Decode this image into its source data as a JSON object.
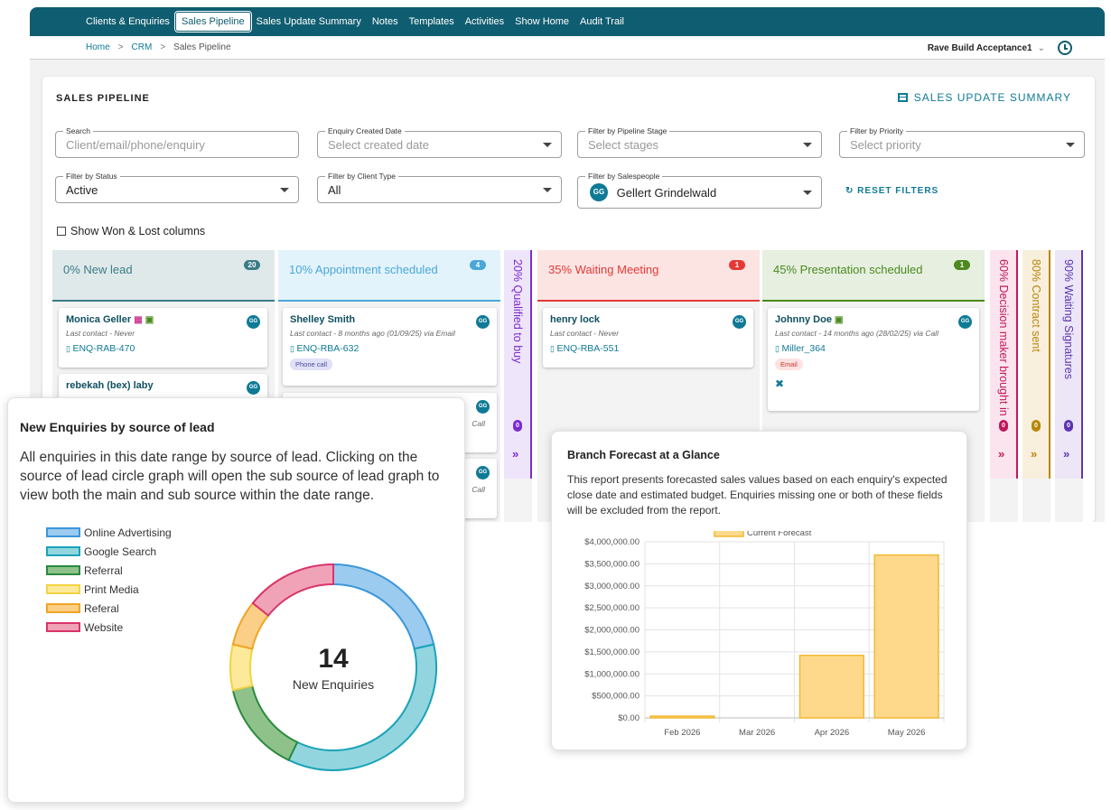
{
  "nav": {
    "items": [
      "Clients & Enquiries",
      "Sales Pipeline",
      "Sales Update Summary",
      "Notes",
      "Templates",
      "Activities",
      "Show Home",
      "Audit Trail"
    ],
    "active_index": 1
  },
  "breadcrumb": [
    "Home",
    "CRM",
    "Sales Pipeline"
  ],
  "account": {
    "name": "Rave Build Acceptance1"
  },
  "page": {
    "title": "SALES PIPELINE",
    "summary_link": "SALES UPDATE SUMMARY",
    "reset_label": "RESET FILTERS",
    "show_won_lost": "Show Won & Lost columns"
  },
  "filters": {
    "search": {
      "label": "Search",
      "placeholder": "Client/email/phone/enquiry"
    },
    "created": {
      "label": "Enquiry Created Date",
      "placeholder": "Select created date"
    },
    "stage": {
      "label": "Filter by Pipeline Stage",
      "placeholder": "Select stages"
    },
    "priority": {
      "label": "Filter by Priority",
      "placeholder": "Select priority"
    },
    "status": {
      "label": "Filter by Status",
      "value": "Active"
    },
    "client_type": {
      "label": "Filter by Client Type",
      "value": "All"
    },
    "salespeople": {
      "label": "Filter by Salespeople",
      "initials": "GG",
      "value": "Gellert Grindelwald"
    }
  },
  "columns": {
    "new_lead": {
      "title": "0% New lead",
      "count": "20",
      "color": "#3b7d86"
    },
    "appointment": {
      "title": "10% Appointment scheduled",
      "count": "4",
      "color": "#4aa7d8"
    },
    "qualified": {
      "title": "20% Qualified to buy",
      "count": "0",
      "color": "#7b2bd1"
    },
    "waiting_meeting": {
      "title": "35% Waiting Meeting",
      "count": "1",
      "color": "#e53935"
    },
    "presentation": {
      "title": "45% Presentation scheduled",
      "count": "1",
      "color": "#4c8a1f"
    },
    "decision_maker": {
      "title": "60% Decision maker brought in",
      "count": "0",
      "color": "#c2185b"
    },
    "contract_sent": {
      "title": "80% Contract sent",
      "count": "0",
      "color": "#b8860b"
    },
    "waiting_signatures": {
      "title": "90% Waiting Signatures",
      "count": "0",
      "color": "#5e35b1"
    }
  },
  "cards": {
    "monica": {
      "name": "Monica Geller",
      "contact": "Last contact - Never",
      "ref": "ENQ-RAB-470",
      "initials": "GG"
    },
    "rebekah": {
      "name": "rebekah (bex) laby",
      "initials": "GG"
    },
    "shelley": {
      "name": "Shelley Smith",
      "contact": "Last contact - 8 months ago (01/09/25) via Email",
      "ref": "ENQ-RBA-632",
      "tag": "Phone call",
      "initials": "GG"
    },
    "partial1": {
      "suffix": "Call",
      "initials": "GG"
    },
    "partial2": {
      "suffix": "Call",
      "initials": "GG"
    },
    "henry": {
      "name": "henry lock",
      "contact": "Last contact - Never",
      "ref": "ENQ-RBA-551",
      "initials": "GG"
    },
    "johnny": {
      "name": "Johnny Doe",
      "contact": "Last contact - 14 months ago (28/02/25) via Call",
      "ref": "Miller_364",
      "tag": "Email",
      "initials": "GG"
    }
  },
  "enquiries_panel": {
    "title": "New Enquiries by source of lead",
    "description": "All enquiries in this date range by source of lead. Clicking on the source of lead circle graph will open the sub source of lead graph to view both the main and sub source within the date range.",
    "total": "14",
    "total_label": "New Enquiries"
  },
  "forecast_panel": {
    "title": "Branch Forecast at a Glance",
    "description": "This report presents forecasted sales values based on each enquiry's expected close date and estimated budget. Enquiries missing one or both of these fields will be excluded from the report."
  },
  "chart_data": [
    {
      "type": "pie",
      "categories": [
        "Online Advertising",
        "Google Search",
        "Referral",
        "Print Media",
        "Referal",
        "Website"
      ],
      "values": [
        3,
        5,
        2,
        1,
        1,
        2
      ],
      "colors": [
        "#9ccbf0",
        "#92d5df",
        "#8fc28a",
        "#fde99a",
        "#fbcf87",
        "#f0a3b6"
      ],
      "strokes": [
        "#3b97da",
        "#1aa3b8",
        "#2a8a3e",
        "#f3d343",
        "#f0a526",
        "#d9346b"
      ],
      "legend": "top-left"
    },
    {
      "type": "bar",
      "categories": [
        "Feb 2026",
        "Mar 2026",
        "Apr 2026",
        "May 2026"
      ],
      "series": [
        {
          "name": "Current Forecast",
          "values": [
            40000,
            0,
            1420000,
            3700000
          ]
        }
      ],
      "ylim": [
        0,
        4000000
      ],
      "yticks": [
        "$4,000,000.00",
        "$3,500,000.00",
        "$3,000,000.00",
        "$2,500,000.00",
        "$2,000,000.00",
        "$1,500,000.00",
        "$1,000,000.00",
        "$500,000.00",
        "$0.00"
      ],
      "legend": "top",
      "grid": true,
      "color": "#fed98c",
      "stroke": "#f2b833"
    }
  ]
}
